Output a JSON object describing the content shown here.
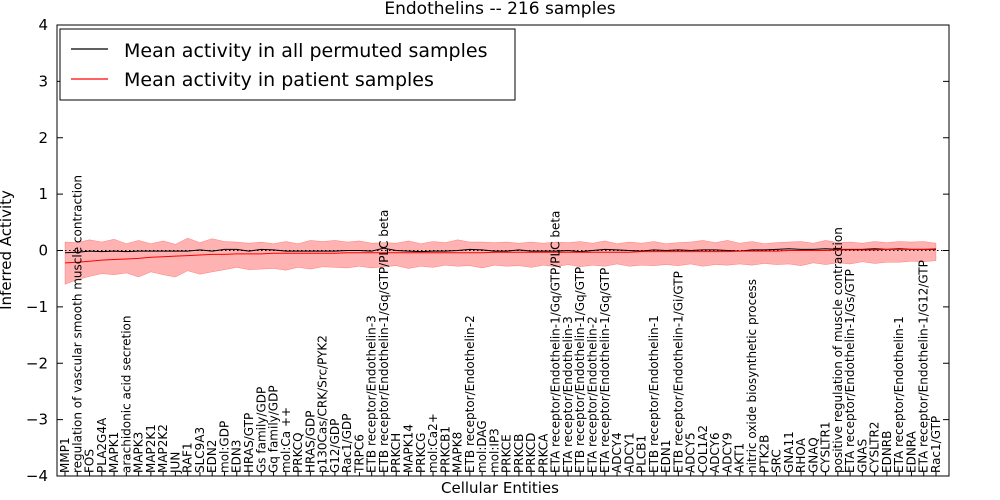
{
  "chart_data": {
    "type": "line",
    "title": "Endothelins -- 216 samples",
    "xlabel": "Cellular Entities",
    "ylabel": "Inferred Activity",
    "ylim": [
      -4,
      4
    ],
    "yticks": [
      4,
      3,
      2,
      1,
      0,
      -1,
      -2,
      -3,
      -4
    ],
    "ytick_labels": [
      "4",
      "3",
      "2",
      "1",
      "0",
      "−1",
      "−2",
      "−3",
      "−4"
    ],
    "legend_position": "top-left",
    "categories": [
      "MMP1",
      "regulation of vascular smooth muscle contraction",
      "FOS",
      "PLA2G4A",
      "MAPK1",
      "arachidonic acid secretion",
      "MAPK3",
      "MAP2K1",
      "MAP2K2",
      "JUN",
      "RAF1",
      "SLC9A3",
      "EDN2",
      "mol:GDP",
      "EDN3",
      "HRAS/GTP",
      "Gs family/GDP",
      "Gq family/GDP",
      "mol:Ca ++",
      "PRKCQ",
      "HRAS/GDP",
      "p130Cas/CRK/Src/PYK2",
      "G12/GDP",
      "Rac1/GDP",
      "TRPC6",
      "ETB receptor/Endothelin-3",
      "ETB receptor/Endothelin-1/Gq/GTP/PLC beta",
      "PRKCH",
      "MAPK14",
      "PRKCG",
      "mol:Ca2+",
      "PRKCB1",
      "MAPK8",
      "ETB receptor/Endothelin-2",
      "mol:DAG",
      "mol:IP3",
      "PRKCE",
      "PRKCB",
      "PRKCD",
      "PRKCA",
      "ETA receptor/Endothelin-1/Gq/GTP/PLC beta",
      "ETA receptor/Endothelin-3",
      "ETB receptor/Endothelin-1/Gq/GTP",
      "ETA receptor/Endothelin-2",
      "ETA receptor/Endothelin-1/Gq/GTP",
      "ADCY4",
      "ADCY1",
      "PLCB1",
      "ETB receptor/Endothelin-1",
      "EDN1",
      "ETB receptor/Endothelin-1/Gi/GTP",
      "ADCY5",
      "COL1A2",
      "ADCY6",
      "ADCY9",
      "AKT1",
      "nitric oxide biosynthetic process",
      "PTK2B",
      "SRC",
      "GNA11",
      "RHOA",
      "GNAQ",
      "CYSLTR1",
      "positive regulation of muscle contraction",
      "ETA receptor/Endothelin-1/Gs/GTP",
      "GNAS",
      "CYSLTR2",
      "EDNRB",
      "ETA receptor/Endothelin-1",
      "EDNRA",
      "ETA receptor/Endothelin-1/G12/GTP",
      "Rac1/GTP"
    ],
    "series": [
      {
        "name": "Mean activity in all permuted samples",
        "color": "#000000",
        "values": [
          -0.04,
          -0.03,
          -0.01,
          -0.02,
          -0.01,
          -0.02,
          -0.01,
          -0.01,
          -0.01,
          -0.01,
          -0.01,
          0.01,
          -0.01,
          0.02,
          0.02,
          -0.01,
          0.02,
          0.01,
          -0.01,
          -0.01,
          -0.01,
          -0.01,
          -0.01,
          0.0,
          0.0,
          -0.01,
          0.04,
          0.0,
          -0.01,
          -0.02,
          -0.01,
          -0.01,
          0.0,
          0.02,
          0.01,
          -0.01,
          -0.01,
          0.01,
          -0.01,
          -0.01,
          -0.01,
          0.0,
          -0.02,
          0.0,
          0.02,
          0.01,
          0.0,
          -0.01,
          0.01,
          0.0,
          0.01,
          0.0,
          0.01,
          0.01,
          0.0,
          -0.01,
          0.01,
          0.01,
          0.02,
          0.03,
          0.02,
          0.02,
          0.03,
          0.02,
          0.02,
          0.02,
          0.03,
          0.02,
          0.03,
          0.02,
          0.02,
          0.02
        ]
      },
      {
        "name": "Mean activity in patient samples",
        "color": "#ff0000",
        "values": [
          -0.22,
          -0.21,
          -0.19,
          -0.17,
          -0.16,
          -0.15,
          -0.14,
          -0.12,
          -0.11,
          -0.1,
          -0.09,
          -0.08,
          -0.07,
          -0.07,
          -0.06,
          -0.06,
          -0.06,
          -0.05,
          -0.05,
          -0.05,
          -0.05,
          -0.05,
          -0.05,
          -0.04,
          -0.04,
          -0.04,
          -0.04,
          -0.04,
          -0.04,
          -0.04,
          -0.04,
          -0.04,
          -0.04,
          -0.04,
          -0.04,
          -0.03,
          -0.03,
          -0.03,
          -0.03,
          -0.03,
          -0.03,
          -0.03,
          -0.03,
          -0.03,
          -0.03,
          -0.03,
          -0.03,
          -0.02,
          -0.02,
          -0.02,
          -0.02,
          -0.02,
          -0.02,
          -0.02,
          -0.02,
          -0.01,
          -0.01,
          -0.01,
          -0.01,
          0.0,
          0.0,
          0.0,
          0.0,
          0.01,
          0.01,
          0.01,
          0.01,
          0.02,
          0.02,
          0.02,
          0.02,
          0.03
        ]
      }
    ],
    "band": {
      "name": "Patient sample spread",
      "color": "#ff0000",
      "upper": [
        0.15,
        0.14,
        0.19,
        0.15,
        0.2,
        0.12,
        0.18,
        0.12,
        0.17,
        0.11,
        0.22,
        0.14,
        0.21,
        0.16,
        0.15,
        0.13,
        0.15,
        0.12,
        0.16,
        0.12,
        0.18,
        0.16,
        0.18,
        0.15,
        0.17,
        0.13,
        0.14,
        0.13,
        0.17,
        0.12,
        0.16,
        0.14,
        0.19,
        0.15,
        0.15,
        0.14,
        0.15,
        0.13,
        0.15,
        0.13,
        0.15,
        0.14,
        0.16,
        0.13,
        0.17,
        0.12,
        0.15,
        0.13,
        0.16,
        0.12,
        0.14,
        0.15,
        0.18,
        0.14,
        0.18,
        0.13,
        0.16,
        0.12,
        0.14,
        0.15,
        0.16,
        0.13,
        0.18,
        0.14,
        0.15,
        0.13,
        0.16,
        0.14,
        0.16,
        0.15,
        0.16,
        0.13
      ],
      "lower": [
        -0.6,
        -0.52,
        -0.46,
        -0.41,
        -0.43,
        -0.4,
        -0.47,
        -0.38,
        -0.43,
        -0.47,
        -0.36,
        -0.42,
        -0.38,
        -0.34,
        -0.3,
        -0.34,
        -0.33,
        -0.32,
        -0.35,
        -0.3,
        -0.33,
        -0.29,
        -0.3,
        -0.31,
        -0.28,
        -0.31,
        -0.29,
        -0.27,
        -0.32,
        -0.28,
        -0.3,
        -0.26,
        -0.28,
        -0.27,
        -0.31,
        -0.26,
        -0.28,
        -0.27,
        -0.3,
        -0.26,
        -0.29,
        -0.25,
        -0.29,
        -0.26,
        -0.28,
        -0.24,
        -0.28,
        -0.26,
        -0.27,
        -0.25,
        -0.27,
        -0.24,
        -0.28,
        -0.25,
        -0.26,
        -0.24,
        -0.26,
        -0.23,
        -0.25,
        -0.24,
        -0.27,
        -0.22,
        -0.25,
        -0.22,
        -0.24,
        -0.2,
        -0.23,
        -0.21,
        -0.21,
        -0.19,
        -0.2,
        -0.18
      ]
    },
    "zero_line": {
      "value": 0,
      "style": "dotted"
    }
  }
}
